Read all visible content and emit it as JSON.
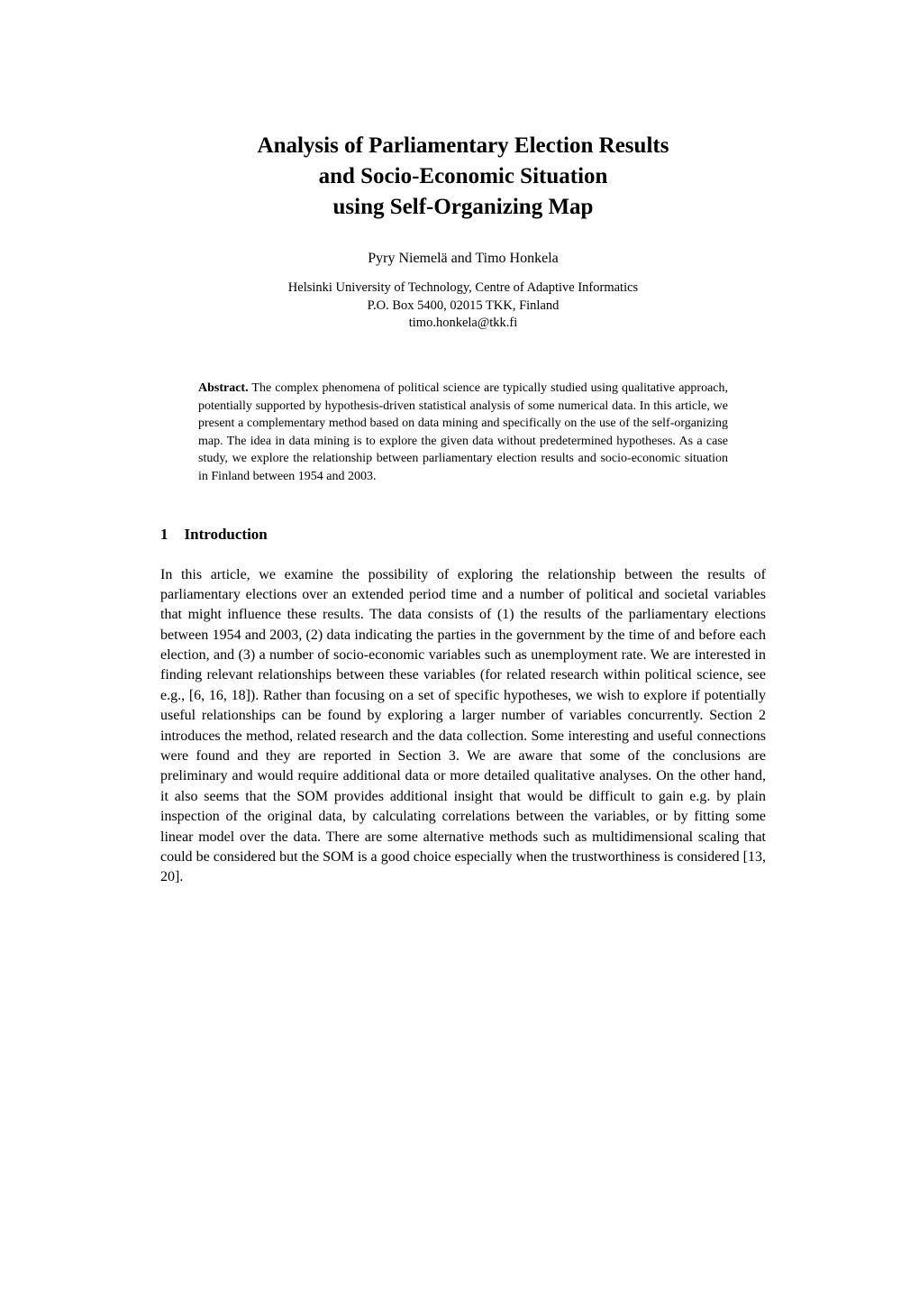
{
  "title_line1": "Analysis of Parliamentary Election Results",
  "title_line2": "and Socio-Economic Situation",
  "title_line3": "using Self-Organizing Map",
  "authors": "Pyry Niemelä and Timo Honkela",
  "affiliation_line1": "Helsinki University of Technology, Centre of Adaptive Informatics",
  "affiliation_line2": "P.O. Box 5400, 02015 TKK, Finland",
  "affiliation_line3": "timo.honkela@tkk.fi",
  "abstract_label": "Abstract.",
  "abstract_body": " The complex phenomena of political science are typically studied using qualitative approach, potentially supported by hypothesis-driven statistical analysis of some numerical data. In this article, we present a complementary method based on data mining and specifically on the use of the self-organizing map. The idea in data mining is to explore the given data without predetermined hypotheses. As a case study, we explore the relationship between parliamentary election results and socio-economic situation in Finland between 1954 and 2003.",
  "section1_number": "1",
  "section1_title": "Introduction",
  "intro_body": "In this article, we examine the possibility of exploring the relationship between the results of parliamentary elections over an extended period time and a number of political and societal variables that might influence these results. The data consists of (1) the results of the parliamentary elections between 1954 and 2003, (2) data indicating the parties in the government by the time of and before each election, and (3) a number of socio-economic variables such as unemployment rate. We are interested in finding relevant relationships between these variables (for related research within political science, see e.g., [6, 16, 18]). Rather than focusing on a set of specific hypotheses, we wish to explore if potentially useful relationships can be found by exploring a larger number of variables concurrently. Section 2 introduces the method, related research and the data collection. Some interesting and useful connections were found and they are reported in Section 3. We are aware that some of the conclusions are preliminary and would require additional data or more detailed qualitative analyses. On the other hand, it also seems that the SOM provides additional insight that would be difficult to gain e.g. by plain inspection of the original data, by calculating correlations between the variables, or by fitting some linear model over the data. There are some alternative methods such as multidimensional scaling that could be considered but the SOM is a good choice especially when the trustworthiness is considered [13, 20]."
}
